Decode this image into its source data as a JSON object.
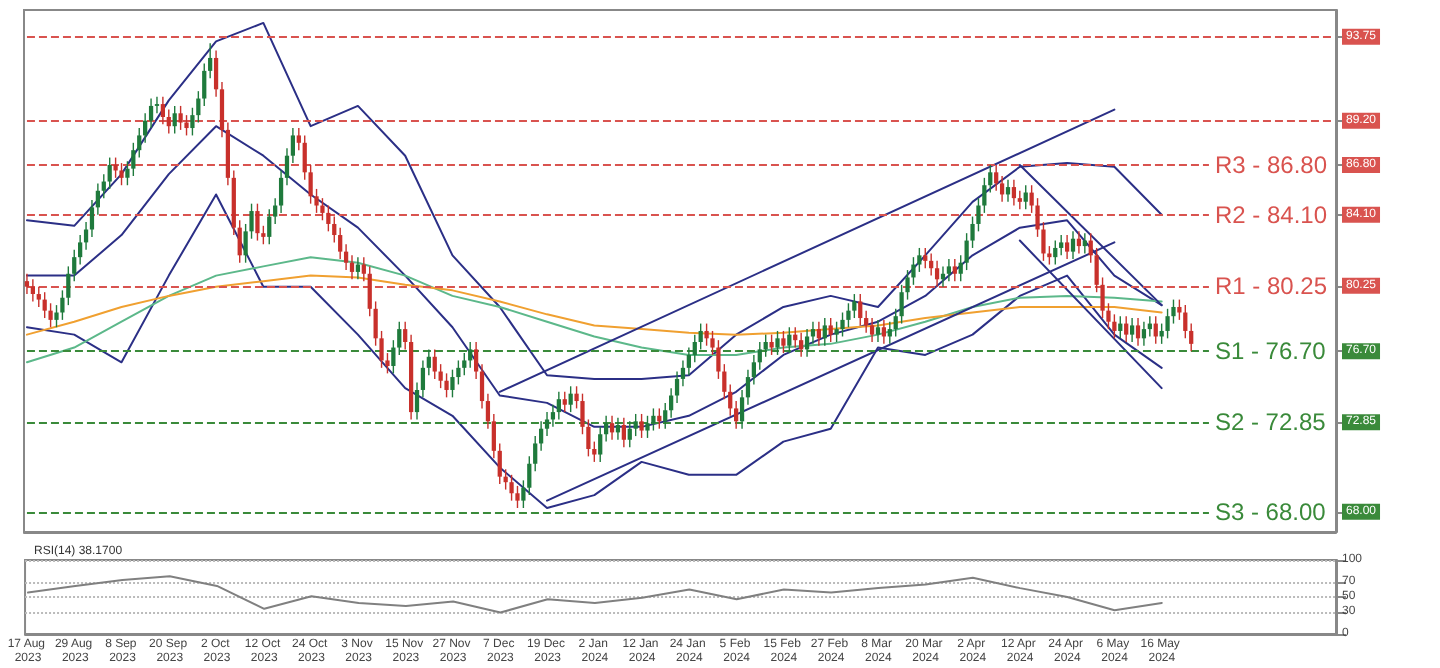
{
  "chart_data": [
    {
      "type": "candlestick",
      "categories": [
        "17 Aug 2023",
        null,
        null,
        null,
        null,
        null,
        null,
        null,
        "29 Aug 2023",
        null,
        null,
        null,
        null,
        null,
        null,
        null,
        "8 Sep 2023",
        null,
        null,
        null,
        null,
        null,
        null,
        null,
        "20 Sep 2023",
        null,
        null,
        null,
        null,
        null,
        null,
        null,
        "2 Oct 2023",
        null,
        null,
        null,
        null,
        null,
        null,
        null,
        "12 Oct 2023",
        null,
        null,
        null,
        null,
        null,
        null,
        null,
        "24 Oct 2023",
        null,
        null,
        null,
        null,
        null,
        null,
        null,
        "3 Nov 2023",
        null,
        null,
        null,
        null,
        null,
        null,
        null,
        "15 Nov 2023",
        null,
        null,
        null,
        null,
        null,
        null,
        null,
        "27 Nov 2023",
        null,
        null,
        null,
        null,
        null,
        null,
        null,
        "7 Dec 2023",
        null,
        null,
        null,
        null,
        null,
        null,
        null,
        "19 Dec 2023",
        null,
        null,
        null,
        null,
        null,
        null,
        null,
        "2 Jan 2024",
        null,
        null,
        null,
        null,
        null,
        null,
        null,
        "12 Jan 2024",
        null,
        null,
        null,
        null,
        null,
        null,
        null,
        "24 Jan 2024",
        null,
        null,
        null,
        null,
        null,
        null,
        null,
        "5 Feb 2024",
        null,
        null,
        null,
        null,
        null,
        null,
        null,
        "15 Feb 2024",
        null,
        null,
        null,
        null,
        null,
        null,
        null,
        "27 Feb 2024",
        null,
        null,
        null,
        null,
        null,
        null,
        null,
        "8 Mar 2024",
        null,
        null,
        null,
        null,
        null,
        null,
        null,
        "20 Mar 2024",
        null,
        null,
        null,
        null,
        null,
        null,
        null,
        "2 Apr 2024",
        null,
        null,
        null,
        null,
        null,
        null,
        null,
        "12 Apr 2024",
        null,
        null,
        null,
        null,
        null,
        null,
        null,
        "24 Apr 2024",
        null,
        null,
        null,
        null,
        null,
        null,
        null,
        "6 May 2024",
        null,
        null,
        null,
        null,
        null,
        null,
        null,
        "16 May 2024",
        null,
        null,
        null,
        null,
        null,
        null,
        null,
        null,
        null,
        null,
        null,
        null,
        null,
        null,
        null,
        null,
        null,
        null,
        null,
        null,
        null,
        null,
        null,
        null,
        null,
        null,
        null,
        null,
        null
      ],
      "ohlc": [
        [
          80.5,
          80.9,
          79.8,
          80.2
        ],
        [
          80.2,
          80.6,
          79.4,
          79.8
        ],
        [
          79.8,
          80.2,
          79.1,
          79.5
        ],
        [
          79.5,
          79.9,
          78.5,
          78.9
        ],
        [
          78.9,
          79.3,
          78.0,
          78.4
        ],
        [
          78.4,
          79.2,
          78.0,
          78.8
        ],
        [
          78.8,
          80.0,
          78.4,
          79.6
        ],
        [
          79.6,
          81.3,
          79.2,
          80.9
        ],
        [
          80.9,
          82.2,
          80.5,
          81.8
        ],
        [
          81.8,
          83.0,
          81.4,
          82.6
        ],
        [
          82.6,
          83.7,
          82.2,
          83.3
        ],
        [
          83.3,
          84.9,
          82.9,
          84.5
        ],
        [
          84.5,
          85.8,
          84.1,
          85.4
        ],
        [
          85.4,
          86.3,
          85.0,
          85.9
        ],
        [
          85.9,
          87.2,
          85.5,
          86.8
        ],
        [
          86.8,
          87.2,
          86.1,
          86.5
        ],
        [
          86.5,
          86.9,
          85.7,
          86.1
        ],
        [
          86.1,
          87.0,
          85.7,
          86.6
        ],
        [
          86.6,
          88.0,
          86.2,
          87.6
        ],
        [
          87.6,
          88.8,
          87.2,
          88.4
        ],
        [
          88.4,
          89.6,
          88.0,
          89.2
        ],
        [
          89.2,
          90.4,
          88.8,
          90.0
        ],
        [
          90.0,
          90.5,
          89.6,
          90.1
        ],
        [
          90.1,
          90.5,
          89.0,
          89.4
        ],
        [
          89.4,
          89.8,
          88.5,
          88.9
        ],
        [
          88.9,
          90.0,
          88.5,
          89.6
        ],
        [
          89.6,
          90.0,
          88.7,
          89.1
        ],
        [
          89.1,
          89.5,
          88.4,
          88.8
        ],
        [
          88.8,
          89.9,
          88.4,
          89.5
        ],
        [
          89.5,
          90.8,
          89.1,
          90.4
        ],
        [
          90.4,
          92.3,
          90.0,
          91.9
        ],
        [
          91.9,
          93.4,
          91.5,
          92.6
        ],
        [
          92.6,
          93.0,
          90.5,
          90.9
        ],
        [
          90.9,
          91.3,
          88.3,
          88.7
        ],
        [
          88.7,
          89.1,
          85.7,
          86.1
        ],
        [
          86.1,
          86.5,
          83.0,
          83.4
        ],
        [
          83.4,
          83.8,
          81.5,
          81.9
        ],
        [
          81.9,
          83.6,
          81.5,
          83.2
        ],
        [
          83.2,
          84.7,
          82.8,
          84.3
        ],
        [
          84.3,
          84.7,
          82.7,
          83.1
        ],
        [
          83.1,
          83.5,
          82.5,
          82.9
        ],
        [
          82.9,
          84.4,
          82.5,
          84.0
        ],
        [
          84.0,
          85.0,
          83.6,
          84.6
        ],
        [
          84.6,
          86.5,
          84.2,
          86.1
        ],
        [
          86.1,
          87.7,
          85.7,
          87.3
        ],
        [
          87.3,
          88.8,
          86.9,
          88.4
        ],
        [
          88.4,
          88.8,
          87.6,
          88.0
        ],
        [
          88.0,
          88.4,
          86.0,
          86.4
        ],
        [
          86.4,
          86.8,
          84.7,
          85.1
        ],
        [
          85.1,
          85.5,
          84.2,
          84.6
        ],
        [
          84.6,
          85.0,
          83.8,
          84.2
        ],
        [
          84.2,
          84.6,
          83.2,
          83.6
        ],
        [
          83.6,
          84.0,
          82.6,
          83.0
        ],
        [
          83.0,
          83.4,
          81.7,
          82.1
        ],
        [
          82.1,
          82.5,
          81.1,
          81.5
        ],
        [
          81.5,
          81.9,
          80.6,
          81.0
        ],
        [
          81.0,
          81.8,
          80.6,
          81.4
        ],
        [
          81.4,
          81.8,
          80.5,
          80.9
        ],
        [
          80.9,
          81.3,
          78.6,
          79.0
        ],
        [
          79.0,
          79.4,
          77.0,
          77.4
        ],
        [
          77.4,
          77.8,
          75.8,
          76.2
        ],
        [
          76.2,
          76.6,
          75.5,
          75.9
        ],
        [
          75.9,
          77.3,
          75.5,
          76.9
        ],
        [
          76.9,
          78.3,
          76.5,
          77.9
        ],
        [
          77.9,
          78.3,
          76.8,
          77.2
        ],
        [
          77.2,
          77.6,
          73.0,
          73.4
        ],
        [
          73.4,
          75.0,
          73.0,
          74.6
        ],
        [
          74.6,
          76.2,
          74.2,
          75.8
        ],
        [
          75.8,
          76.8,
          75.4,
          76.4
        ],
        [
          76.4,
          76.8,
          75.2,
          75.6
        ],
        [
          75.6,
          76.0,
          74.7,
          75.1
        ],
        [
          75.1,
          75.5,
          74.2,
          74.6
        ],
        [
          74.6,
          75.7,
          74.2,
          75.3
        ],
        [
          75.3,
          76.2,
          74.9,
          75.8
        ],
        [
          75.8,
          76.6,
          75.4,
          76.2
        ],
        [
          76.2,
          77.2,
          75.8,
          76.8
        ],
        [
          76.8,
          77.2,
          75.2,
          75.6
        ],
        [
          75.6,
          76.0,
          73.6,
          74.0
        ],
        [
          74.0,
          74.4,
          72.5,
          72.9
        ],
        [
          72.9,
          73.3,
          70.9,
          71.3
        ],
        [
          71.3,
          71.7,
          69.5,
          69.9
        ],
        [
          69.9,
          70.3,
          69.2,
          69.6
        ],
        [
          69.6,
          70.0,
          68.6,
          69.0
        ],
        [
          69.0,
          69.4,
          68.2,
          68.6
        ],
        [
          68.6,
          69.7,
          68.2,
          69.3
        ],
        [
          69.3,
          71.0,
          68.9,
          70.6
        ],
        [
          70.6,
          72.1,
          70.2,
          71.7
        ],
        [
          71.7,
          72.9,
          71.3,
          72.5
        ],
        [
          72.5,
          73.4,
          72.1,
          73.0
        ],
        [
          73.0,
          73.8,
          72.6,
          73.4
        ],
        [
          73.4,
          74.5,
          73.0,
          74.1
        ],
        [
          74.1,
          74.5,
          73.4,
          73.8
        ],
        [
          73.8,
          74.8,
          73.4,
          74.4
        ],
        [
          74.4,
          74.8,
          73.6,
          74.0
        ],
        [
          74.0,
          74.4,
          72.2,
          72.6
        ],
        [
          72.6,
          73.0,
          71.0,
          71.4
        ],
        [
          71.4,
          71.8,
          70.7,
          71.1
        ],
        [
          71.1,
          72.6,
          70.7,
          72.2
        ],
        [
          72.2,
          73.2,
          71.8,
          72.8
        ],
        [
          72.8,
          73.2,
          71.9,
          72.3
        ],
        [
          72.3,
          73.1,
          71.9,
          72.7
        ],
        [
          72.7,
          73.1,
          71.5,
          71.9
        ],
        [
          71.9,
          72.9,
          71.5,
          72.5
        ],
        [
          72.5,
          73.3,
          72.1,
          72.9
        ],
        [
          72.9,
          73.3,
          72.0,
          72.4
        ],
        [
          72.4,
          73.2,
          72.0,
          72.8
        ],
        [
          72.8,
          73.6,
          72.4,
          73.2
        ],
        [
          73.2,
          73.6,
          72.5,
          72.9
        ],
        [
          72.9,
          73.9,
          72.5,
          73.5
        ],
        [
          73.5,
          74.7,
          73.1,
          74.3
        ],
        [
          74.3,
          75.6,
          73.9,
          75.2
        ],
        [
          75.2,
          76.2,
          74.8,
          75.8
        ],
        [
          75.8,
          76.9,
          75.4,
          76.5
        ],
        [
          76.5,
          77.6,
          76.1,
          77.2
        ],
        [
          77.2,
          78.2,
          76.8,
          77.8
        ],
        [
          77.8,
          78.2,
          77.0,
          77.4
        ],
        [
          77.4,
          77.8,
          76.5,
          76.9
        ],
        [
          76.9,
          77.3,
          75.2,
          75.6
        ],
        [
          75.6,
          76.0,
          74.1,
          74.5
        ],
        [
          74.5,
          74.9,
          73.2,
          73.6
        ],
        [
          73.6,
          74.0,
          72.5,
          72.9
        ],
        [
          72.9,
          74.6,
          72.5,
          74.2
        ],
        [
          74.2,
          75.7,
          73.8,
          75.3
        ],
        [
          75.3,
          76.5,
          74.9,
          76.1
        ],
        [
          76.1,
          77.2,
          75.7,
          76.8
        ],
        [
          76.8,
          77.6,
          76.4,
          77.2
        ],
        [
          77.2,
          77.6,
          76.5,
          76.9
        ],
        [
          76.9,
          77.8,
          76.5,
          77.4
        ],
        [
          77.4,
          77.8,
          76.6,
          77.0
        ],
        [
          77.0,
          78.0,
          76.6,
          77.6
        ],
        [
          77.6,
          78.0,
          76.9,
          77.3
        ],
        [
          77.3,
          77.7,
          76.4,
          76.8
        ],
        [
          76.8,
          77.9,
          76.4,
          77.5
        ],
        [
          77.5,
          78.3,
          77.1,
          77.9
        ],
        [
          77.9,
          78.3,
          77.0,
          77.4
        ],
        [
          77.4,
          78.5,
          77.0,
          78.1
        ],
        [
          78.1,
          78.5,
          77.2,
          77.6
        ],
        [
          77.6,
          78.3,
          77.2,
          77.9
        ],
        [
          77.9,
          78.8,
          77.5,
          78.4
        ],
        [
          78.4,
          79.3,
          78.0,
          78.9
        ],
        [
          78.9,
          79.8,
          78.5,
          79.4
        ],
        [
          79.4,
          79.8,
          78.1,
          78.5
        ],
        [
          78.5,
          78.9,
          77.7,
          78.1
        ],
        [
          78.1,
          78.5,
          77.2,
          77.6
        ],
        [
          77.6,
          78.4,
          77.2,
          78.0
        ],
        [
          78.0,
          78.4,
          77.1,
          77.5
        ],
        [
          77.5,
          78.3,
          77.1,
          77.9
        ],
        [
          77.9,
          79.0,
          77.5,
          78.6
        ],
        [
          78.6,
          80.3,
          78.2,
          79.9
        ],
        [
          79.9,
          81.1,
          79.5,
          80.7
        ],
        [
          80.7,
          81.8,
          80.3,
          81.4
        ],
        [
          81.4,
          82.3,
          81.0,
          81.9
        ],
        [
          81.9,
          82.3,
          81.2,
          81.6
        ],
        [
          81.6,
          82.0,
          80.8,
          81.2
        ],
        [
          81.2,
          81.6,
          80.2,
          80.6
        ],
        [
          80.6,
          81.3,
          80.2,
          80.9
        ],
        [
          80.9,
          81.7,
          80.5,
          81.3
        ],
        [
          81.3,
          81.7,
          80.5,
          80.9
        ],
        [
          80.9,
          81.9,
          80.5,
          81.5
        ],
        [
          81.5,
          83.1,
          81.1,
          82.7
        ],
        [
          82.7,
          84.0,
          82.3,
          83.6
        ],
        [
          83.6,
          85.0,
          83.2,
          84.6
        ],
        [
          84.6,
          86.1,
          84.2,
          85.7
        ],
        [
          85.7,
          86.8,
          85.3,
          86.4
        ],
        [
          86.4,
          86.8,
          85.4,
          85.8
        ],
        [
          85.8,
          86.2,
          84.8,
          85.2
        ],
        [
          85.2,
          86.0,
          84.8,
          85.6
        ],
        [
          85.6,
          86.0,
          84.6,
          85.0
        ],
        [
          85.0,
          85.4,
          84.4,
          84.8
        ],
        [
          84.8,
          85.7,
          84.4,
          85.3
        ],
        [
          85.3,
          85.7,
          84.2,
          84.6
        ],
        [
          84.6,
          85.0,
          82.9,
          83.3
        ],
        [
          83.3,
          83.7,
          81.6,
          82.0
        ],
        [
          82.0,
          82.4,
          81.4,
          81.8
        ],
        [
          81.8,
          82.7,
          81.4,
          82.3
        ],
        [
          82.3,
          83.0,
          81.9,
          82.6
        ],
        [
          82.6,
          83.0,
          81.7,
          82.1
        ],
        [
          82.1,
          83.2,
          81.7,
          82.8
        ],
        [
          82.8,
          83.2,
          82.0,
          82.4
        ],
        [
          82.4,
          83.1,
          82.0,
          82.7
        ],
        [
          82.7,
          83.1,
          81.5,
          81.9
        ],
        [
          81.9,
          82.3,
          79.9,
          80.3
        ],
        [
          80.3,
          80.7,
          78.5,
          78.9
        ],
        [
          78.9,
          79.3,
          77.9,
          78.3
        ],
        [
          78.3,
          78.7,
          77.4,
          77.8
        ],
        [
          77.8,
          78.6,
          77.4,
          78.2
        ],
        [
          78.2,
          78.6,
          77.2,
          77.6
        ],
        [
          77.6,
          78.5,
          77.2,
          78.1
        ],
        [
          78.1,
          78.5,
          77.0,
          77.4
        ],
        [
          77.4,
          78.3,
          77.0,
          77.9
        ],
        [
          77.9,
          78.6,
          77.5,
          78.2
        ],
        [
          78.2,
          78.6,
          77.1,
          77.5
        ],
        [
          77.5,
          78.2,
          77.1,
          77.8
        ],
        [
          77.8,
          79.0,
          77.4,
          78.6
        ],
        [
          78.6,
          79.5,
          78.2,
          79.1
        ],
        [
          79.1,
          79.5,
          78.4,
          78.8
        ],
        [
          78.8,
          79.2,
          77.4,
          77.8
        ],
        [
          77.8,
          78.2,
          76.7,
          77.1
        ],
        null,
        null,
        null,
        null,
        null,
        null,
        null,
        null,
        null,
        null,
        null,
        null,
        null,
        null,
        null,
        null,
        null,
        null,
        null,
        null,
        null,
        null,
        null,
        null
      ],
      "series": [
        {
          "type": "line",
          "color": "#2b2f86",
          "x": [
            "17 Aug 2023",
            "29 Aug 2023",
            "8 Sep 2023",
            "20 Sep 2023",
            "2 Oct 2023",
            "12 Oct 2023",
            "24 Oct 2023",
            "3 Nov 2023",
            "15 Nov 2023",
            "27 Nov 2023",
            "7 Dec 2023",
            "19 Dec 2023",
            "2 Jan 2024",
            "12 Jan 2024",
            "24 Jan 2024",
            "5 Feb 2024",
            "15 Feb 2024",
            "27 Feb 2024",
            "8 Mar 2024",
            "20 Mar 2024",
            "2 Apr 2024",
            "12 Apr 2024",
            "24 Apr 2024",
            "6 May 2024",
            "16 May 2024"
          ],
          "values": [
            83.8,
            83.5,
            86.3,
            90.3,
            93.5,
            94.5,
            88.9,
            90.0,
            87.3,
            81.9,
            79.1,
            75.4,
            75.2,
            75.2,
            75.4,
            77.6,
            79.1,
            79.7,
            79.1,
            81.9,
            84.8,
            86.7,
            86.9,
            86.7,
            84.1
          ]
        },
        {
          "type": "line",
          "color": "#2b2f86",
          "x": [
            "17 Aug 2023",
            "29 Aug 2023",
            "8 Sep 2023",
            "20 Sep 2023",
            "2 Oct 2023",
            "12 Oct 2023",
            "24 Oct 2023",
            "3 Nov 2023",
            "15 Nov 2023",
            "27 Nov 2023",
            "7 Dec 2023",
            "19 Dec 2023",
            "2 Jan 2024",
            "12 Jan 2024",
            "24 Jan 2024",
            "5 Feb 2024",
            "15 Feb 2024",
            "27 Feb 2024",
            "8 Mar 2024",
            "20 Mar 2024",
            "2 Apr 2024",
            "12 Apr 2024",
            "24 Apr 2024",
            "6 May 2024",
            "16 May 2024"
          ],
          "values": [
            80.8,
            80.8,
            83.0,
            86.3,
            88.9,
            87.3,
            85.2,
            83.4,
            80.8,
            78.0,
            74.3,
            73.9,
            72.6,
            72.6,
            73.2,
            74.5,
            76.5,
            77.6,
            78.3,
            79.7,
            81.9,
            83.4,
            83.8,
            80.8,
            79.2
          ]
        },
        {
          "type": "line",
          "color": "#2b2f86",
          "x": [
            "17 Aug 2023",
            "29 Aug 2023",
            "8 Sep 2023",
            "20 Sep 2023",
            "2 Oct 2023",
            "12 Oct 2023",
            "24 Oct 2023",
            "3 Nov 2023",
            "15 Nov 2023",
            "27 Nov 2023",
            "7 Dec 2023",
            "19 Dec 2023",
            "2 Jan 2024",
            "12 Jan 2024",
            "24 Jan 2024",
            "5 Feb 2024",
            "15 Feb 2024",
            "27 Feb 2024",
            "8 Mar 2024",
            "20 Mar 2024",
            "2 Apr 2024",
            "12 Apr 2024",
            "24 Apr 2024",
            "6 May 2024",
            "16 May 2024"
          ],
          "values": [
            78.0,
            77.6,
            76.1,
            80.8,
            85.2,
            80.2,
            80.2,
            77.6,
            74.7,
            73.2,
            70.4,
            68.2,
            68.9,
            70.7,
            70.0,
            70.0,
            71.8,
            72.5,
            76.9,
            76.5,
            77.6,
            79.7,
            80.8,
            77.6,
            75.8
          ]
        },
        {
          "type": "line",
          "color": "#5cb88a",
          "x": [
            "17 Aug 2023",
            "29 Aug 2023",
            "8 Sep 2023",
            "20 Sep 2023",
            "2 Oct 2023",
            "12 Oct 2023",
            "24 Oct 2023",
            "3 Nov 2023",
            "15 Nov 2023",
            "27 Nov 2023",
            "7 Dec 2023",
            "19 Dec 2023",
            "2 Jan 2024",
            "12 Jan 2024",
            "24 Jan 2024",
            "5 Feb 2024",
            "15 Feb 2024",
            "27 Feb 2024",
            "8 Mar 2024",
            "20 Mar 2024",
            "2 Apr 2024",
            "12 Apr 2024",
            "24 Apr 2024",
            "6 May 2024",
            "16 May 2024"
          ],
          "values": [
            76.1,
            76.9,
            78.3,
            79.7,
            80.8,
            81.3,
            81.8,
            81.5,
            80.8,
            79.7,
            79.1,
            78.3,
            77.5,
            76.9,
            76.5,
            76.5,
            76.9,
            77.1,
            77.6,
            78.3,
            79.1,
            79.6,
            79.7,
            79.6,
            79.4
          ]
        },
        {
          "type": "line",
          "color": "#f0a030",
          "x": [
            "17 Aug 2023",
            "29 Aug 2023",
            "8 Sep 2023",
            "20 Sep 2023",
            "2 Oct 2023",
            "12 Oct 2023",
            "24 Oct 2023",
            "3 Nov 2023",
            "15 Nov 2023",
            "27 Nov 2023",
            "7 Dec 2023",
            "19 Dec 2023",
            "2 Jan 2024",
            "12 Jan 2024",
            "24 Jan 2024",
            "5 Feb 2024",
            "15 Feb 2024",
            "27 Feb 2024",
            "8 Mar 2024",
            "20 Mar 2024",
            "2 Apr 2024",
            "12 Apr 2024",
            "24 Apr 2024",
            "6 May 2024",
            "16 May 2024"
          ],
          "values": [
            77.6,
            78.3,
            79.1,
            79.7,
            80.2,
            80.5,
            80.8,
            80.7,
            80.3,
            80.0,
            79.4,
            78.7,
            78.1,
            77.9,
            77.7,
            77.6,
            77.7,
            77.9,
            78.1,
            78.5,
            78.8,
            79.1,
            79.1,
            79.1,
            78.8
          ]
        },
        {
          "type": "line",
          "color": "#2b2f86",
          "x": [
            "7 Dec 2023",
            "6 May 2024"
          ],
          "values": [
            74.5,
            89.8
          ]
        },
        {
          "type": "line",
          "color": "#2b2f86",
          "x": [
            "19 Dec 2023",
            "6 May 2024"
          ],
          "values": [
            68.6,
            82.6
          ]
        },
        {
          "type": "line",
          "color": "#2b2f86",
          "x": [
            "12 Apr 2024",
            "16 May 2024"
          ],
          "values": [
            86.8,
            79.2
          ]
        },
        {
          "type": "line",
          "color": "#2b2f86",
          "x": [
            "12 Apr 2024",
            "16 May 2024"
          ],
          "values": [
            82.7,
            74.7
          ]
        }
      ],
      "ylim": [
        66.9,
        95.2
      ],
      "yticks": [
        {
          "value": 68.0,
          "label": "68.00"
        },
        {
          "value": 72.85,
          "label": "72.85"
        },
        {
          "value": 76.7,
          "label": "76.70"
        },
        {
          "value": 80.25,
          "label": "80.25"
        },
        {
          "value": 84.1,
          "label": "84.10"
        },
        {
          "value": 86.8,
          "label": "86.80"
        },
        {
          "value": 89.2,
          "label": "89.20"
        },
        {
          "value": 93.75,
          "label": "93.75"
        }
      ],
      "ref_lines": [
        {
          "axis": "y",
          "value": 93.75,
          "color": "#d9534f",
          "line_style": "dashed"
        },
        {
          "axis": "y",
          "value": 89.2,
          "color": "#d9534f",
          "line_style": "dashed"
        },
        {
          "axis": "y",
          "value": 86.8,
          "label": "R3 - 86.80",
          "color": "#d9534f",
          "line_style": "dashed"
        },
        {
          "axis": "y",
          "value": 84.1,
          "label": "R2 - 84.10",
          "color": "#d9534f",
          "line_style": "dashed"
        },
        {
          "axis": "y",
          "value": 80.25,
          "label": "R1 - 80.25",
          "color": "#d9534f",
          "line_style": "dashed"
        },
        {
          "axis": "y",
          "value": 76.7,
          "label": "S1 - 76.70",
          "color": "#3a8a3a",
          "line_style": "dashed"
        },
        {
          "axis": "y",
          "value": 72.85,
          "label": "S2 - 72.85",
          "color": "#3a8a3a",
          "line_style": "dashed"
        },
        {
          "axis": "y",
          "value": 68.0,
          "label": "S3 - 68.00",
          "color": "#3a8a3a",
          "line_style": "dashed"
        }
      ],
      "tick_labels": "y",
      "marker": "none"
    },
    {
      "type": "line",
      "title": "RSI(14) 38.1700",
      "categories": [
        "17 Aug 2023",
        null,
        null,
        null,
        null,
        null,
        null,
        null,
        "29 Aug 2023",
        null,
        null,
        null,
        null,
        null,
        null,
        null,
        "8 Sep 2023",
        null,
        null,
        null,
        null,
        null,
        null,
        null,
        "20 Sep 2023",
        null,
        null,
        null,
        null,
        null,
        null,
        null,
        "2 Oct 2023",
        null,
        null,
        null,
        null,
        null,
        null,
        null,
        "12 Oct 2023",
        null,
        null,
        null,
        null,
        null,
        null,
        null,
        "24 Oct 2023",
        null,
        null,
        null,
        null,
        null,
        null,
        null,
        "3 Nov 2023",
        null,
        null,
        null,
        null,
        null,
        null,
        null,
        "15 Nov 2023",
        null,
        null,
        null,
        null,
        null,
        null,
        null,
        "27 Nov 2023",
        null,
        null,
        null,
        null,
        null,
        null,
        null,
        "7 Dec 2023",
        null,
        null,
        null,
        null,
        null,
        null,
        null,
        "19 Dec 2023",
        null,
        null,
        null,
        null,
        null,
        null,
        null,
        "2 Jan 2024",
        null,
        null,
        null,
        null,
        null,
        null,
        null,
        "12 Jan 2024",
        null,
        null,
        null,
        null,
        null,
        null,
        null,
        "24 Jan 2024",
        null,
        null,
        null,
        null,
        null,
        null,
        null,
        "5 Feb 2024",
        null,
        null,
        null,
        null,
        null,
        null,
        null,
        "15 Feb 2024",
        null,
        null,
        null,
        null,
        null,
        null,
        null,
        "27 Feb 2024",
        null,
        null,
        null,
        null,
        null,
        null,
        null,
        "8 Mar 2024",
        null,
        null,
        null,
        null,
        null,
        null,
        null,
        "20 Mar 2024",
        null,
        null,
        null,
        null,
        null,
        null,
        null,
        "2 Apr 2024",
        null,
        null,
        null,
        null,
        null,
        null,
        null,
        "12 Apr 2024",
        null,
        null,
        null,
        null,
        null,
        null,
        null,
        "24 Apr 2024",
        null,
        null,
        null,
        null,
        null,
        null,
        null,
        "6 May 2024",
        null,
        null,
        null,
        null,
        null,
        null,
        null,
        "16 May 2024",
        null,
        null,
        null,
        null,
        null,
        null,
        null,
        null,
        null,
        null,
        null,
        null,
        null,
        null,
        null,
        null,
        null,
        null,
        null,
        null,
        null,
        null,
        null,
        null,
        null,
        null,
        null,
        null,
        null
      ],
      "series": [
        {
          "color": "#808080",
          "x": [
            "17 Aug 2023",
            "29 Aug 2023",
            "8 Sep 2023",
            "20 Sep 2023",
            "2 Oct 2023",
            "12 Oct 2023",
            "24 Oct 2023",
            "3 Nov 2023",
            "15 Nov 2023",
            "27 Nov 2023",
            "7 Dec 2023",
            "19 Dec 2023",
            "2 Jan 2024",
            "12 Jan 2024",
            "24 Jan 2024",
            "5 Feb 2024",
            "15 Feb 2024",
            "27 Feb 2024",
            "8 Mar 2024",
            "20 Mar 2024",
            "2 Apr 2024",
            "12 Apr 2024",
            "24 Apr 2024",
            "6 May 2024",
            "16 May 2024"
          ],
          "values": [
            56,
            65,
            73,
            78,
            65,
            34,
            51,
            42,
            38,
            44,
            29,
            47,
            42,
            49,
            60,
            47,
            60,
            56,
            62,
            67,
            76,
            62,
            50,
            32,
            42
          ]
        }
      ],
      "ylim": [
        0,
        100
      ],
      "yticks": [
        0,
        30,
        50,
        70,
        100
      ],
      "grid": "y",
      "marker": "none"
    }
  ]
}
